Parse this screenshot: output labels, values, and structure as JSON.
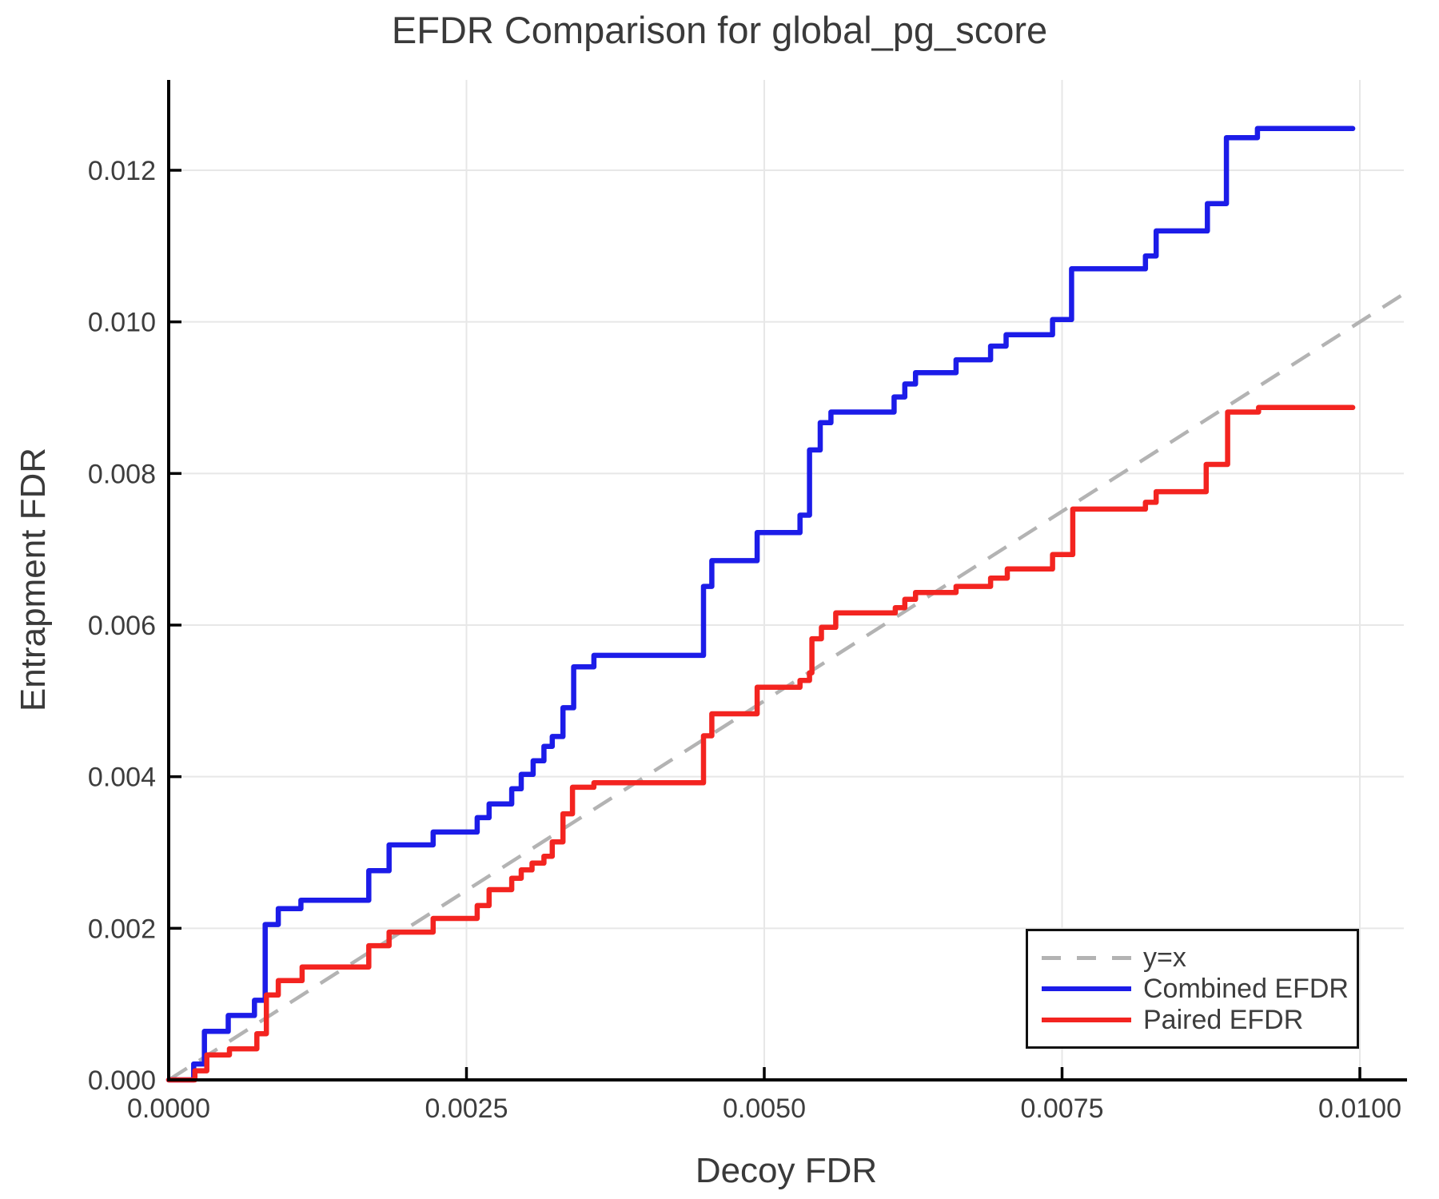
{
  "title": "EFDR Comparison for global_pg_score",
  "axes": {
    "x": {
      "label": "Decoy FDR",
      "tick_values": [
        0.0,
        0.0025,
        0.005,
        0.0075,
        0.01
      ],
      "tick_labels": [
        "0.0000",
        "0.0025",
        "0.0050",
        "0.0075",
        "0.0100"
      ]
    },
    "y": {
      "label": "Entrapment FDR",
      "tick_values": [
        0.0,
        0.002,
        0.004,
        0.006,
        0.008,
        0.01,
        0.012
      ],
      "tick_labels": [
        "0.000",
        "0.002",
        "0.004",
        "0.006",
        "0.008",
        "0.010",
        "0.012"
      ]
    }
  },
  "colors": {
    "combined": "#1c1ce8",
    "paired": "#f32420",
    "identity": "#b3b3b3",
    "gridline": "#e7e7e7",
    "spine": "#000000",
    "text": "#3d3d3d"
  },
  "legend": {
    "items": [
      {
        "label": "y=x",
        "color": "#b3b3b3",
        "dashed": true
      },
      {
        "label": "Combined EFDR",
        "color": "#1c1ce8",
        "dashed": false
      },
      {
        "label": "Paired EFDR",
        "color": "#f32420",
        "dashed": false
      }
    ]
  },
  "chart_data": {
    "type": "line",
    "title": "EFDR Comparison for global_pg_score",
    "xlabel": "Decoy FDR",
    "ylabel": "Entrapment FDR",
    "xlim": [
      0,
      0.010366
    ],
    "ylim": [
      0,
      0.013192
    ],
    "grid": true,
    "legend_position": "bottom-right",
    "xticks": [
      0.0,
      0.0025,
      0.005,
      0.0075,
      0.01
    ],
    "yticks": [
      0.0,
      0.002,
      0.004,
      0.006,
      0.008,
      0.01,
      0.012
    ],
    "series": [
      {
        "name": "y=x",
        "style": "dashed-line",
        "color": "#b3b3b3",
        "points": [
          [
            0.0,
            0.0
          ],
          [
            0.010366,
            0.010366
          ]
        ]
      },
      {
        "name": "Combined EFDR",
        "style": "step",
        "color": "#1c1ce8",
        "points": [
          [
            0.0,
            0.0
          ],
          [
            0.00021,
            0.00021
          ],
          [
            0.0003,
            0.00064
          ],
          [
            0.0005,
            0.00085
          ],
          [
            0.00072,
            0.00105
          ],
          [
            0.00081,
            0.00205
          ],
          [
            0.00092,
            0.00226
          ],
          [
            0.00111,
            0.00237
          ],
          [
            0.00168,
            0.00276
          ],
          [
            0.00185,
            0.0031
          ],
          [
            0.00222,
            0.00327
          ],
          [
            0.00259,
            0.00346
          ],
          [
            0.00269,
            0.00364
          ],
          [
            0.00288,
            0.00384
          ],
          [
            0.00296,
            0.00403
          ],
          [
            0.00306,
            0.00421
          ],
          [
            0.00315,
            0.0044
          ],
          [
            0.00322,
            0.00453
          ],
          [
            0.00331,
            0.00491
          ],
          [
            0.0034,
            0.00545
          ],
          [
            0.00357,
            0.0056
          ],
          [
            0.00449,
            0.00651
          ],
          [
            0.00456,
            0.00685
          ],
          [
            0.00494,
            0.00722
          ],
          [
            0.0053,
            0.00745
          ],
          [
            0.00538,
            0.00831
          ],
          [
            0.00547,
            0.00867
          ],
          [
            0.00556,
            0.00881
          ],
          [
            0.00609,
            0.00901
          ],
          [
            0.00618,
            0.00918
          ],
          [
            0.00627,
            0.00933
          ],
          [
            0.00661,
            0.0095
          ],
          [
            0.0069,
            0.00968
          ],
          [
            0.00703,
            0.00983
          ],
          [
            0.00742,
            0.01003
          ],
          [
            0.00758,
            0.0107
          ],
          [
            0.0082,
            0.01087
          ],
          [
            0.00829,
            0.0112
          ],
          [
            0.00872,
            0.01156
          ],
          [
            0.00888,
            0.01243
          ],
          [
            0.00914,
            0.01255
          ],
          [
            0.00994,
            0.01255
          ]
        ]
      },
      {
        "name": "Paired EFDR",
        "style": "step",
        "color": "#f32420",
        "points": [
          [
            0.0,
            0.0
          ],
          [
            0.00022,
            0.00012
          ],
          [
            0.00032,
            0.00033
          ],
          [
            0.00051,
            0.00041
          ],
          [
            0.00074,
            0.00061
          ],
          [
            0.00082,
            0.00112
          ],
          [
            0.00092,
            0.00131
          ],
          [
            0.00112,
            0.00149
          ],
          [
            0.00168,
            0.00177
          ],
          [
            0.00185,
            0.00195
          ],
          [
            0.00222,
            0.00213
          ],
          [
            0.00259,
            0.0023
          ],
          [
            0.00269,
            0.00251
          ],
          [
            0.00288,
            0.00266
          ],
          [
            0.00296,
            0.00277
          ],
          [
            0.00305,
            0.00286
          ],
          [
            0.00315,
            0.00295
          ],
          [
            0.00322,
            0.00314
          ],
          [
            0.00331,
            0.00351
          ],
          [
            0.00339,
            0.00386
          ],
          [
            0.00357,
            0.00392
          ],
          [
            0.00449,
            0.00454
          ],
          [
            0.00456,
            0.00483
          ],
          [
            0.00494,
            0.00518
          ],
          [
            0.0053,
            0.00527
          ],
          [
            0.00538,
            0.00537
          ],
          [
            0.0054,
            0.00582
          ],
          [
            0.00548,
            0.00597
          ],
          [
            0.0056,
            0.00616
          ],
          [
            0.0061,
            0.00623
          ],
          [
            0.00618,
            0.00634
          ],
          [
            0.00627,
            0.00643
          ],
          [
            0.00661,
            0.00651
          ],
          [
            0.0069,
            0.00662
          ],
          [
            0.00704,
            0.00674
          ],
          [
            0.00742,
            0.00693
          ],
          [
            0.00759,
            0.00753
          ],
          [
            0.0082,
            0.00762
          ],
          [
            0.00829,
            0.00776
          ],
          [
            0.00871,
            0.00812
          ],
          [
            0.00889,
            0.00881
          ],
          [
            0.00915,
            0.00887
          ],
          [
            0.00994,
            0.00887
          ]
        ]
      }
    ]
  }
}
